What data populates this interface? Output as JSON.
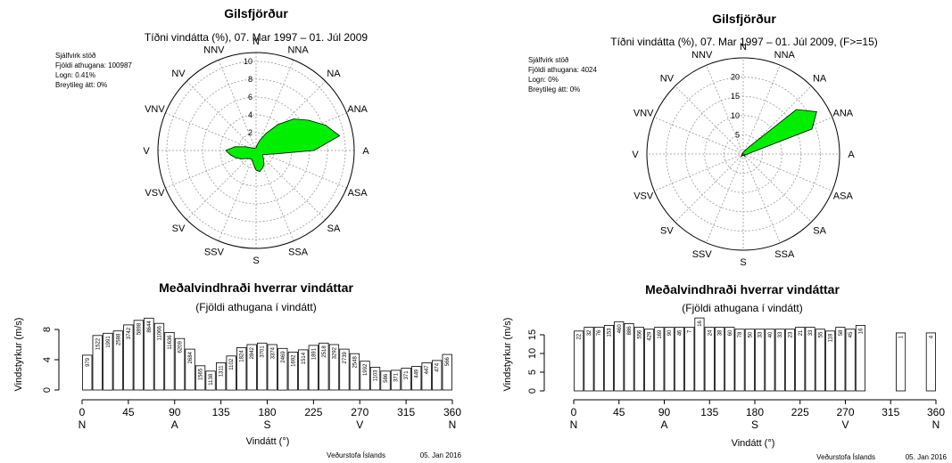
{
  "footer": {
    "institution": "Veðurstofa Íslands",
    "date": "05. Jan 2016"
  },
  "directions": [
    "N",
    "NNA",
    "NA",
    "ANA",
    "A",
    "ASA",
    "SA",
    "SSA",
    "S",
    "SSV",
    "SV",
    "VSV",
    "V",
    "VNV",
    "NV",
    "NNV"
  ],
  "bar_xtick_labels": [
    "0",
    "45",
    "90",
    "135",
    "180",
    "225",
    "270",
    "315",
    "360"
  ],
  "bar_xtick_dirs": [
    "N",
    "",
    "A",
    "",
    "S",
    "",
    "V",
    "",
    "N"
  ],
  "colors": {
    "rose_fill": "#00ee00",
    "rose_outline": "#000000",
    "bar_fill": "#ffffff"
  },
  "panels": [
    {
      "title": "Gilsfjörður",
      "subtitle": "Tíðni vindátta (%), 07. Mar 1997 – 01. Júl 2009",
      "info": [
        "Sjálfvirk stöð",
        "Fjöldi athugana: 100987",
        "Logn: 0.41%",
        "Breytileg átt: 0%"
      ],
      "bar_title": "Meðalvindhraði hverrar vindáttar",
      "bar_subtitle": "(Fjöldi athugana í vindátt)",
      "bar_ylabel": "Vindstyrkur (m/s)",
      "bar_xlabel": "Vindátt (°)"
    },
    {
      "title": "Gilsfjörður",
      "subtitle": "Tíðni vindátta (%), 07. Mar 1997 – 01. Júl 2009, (F>=15)",
      "info": [
        "Sjálfvirk stöð",
        "Fjöldi athugana: 4024",
        "Logn: 0%",
        "Breytileg átt: 0%"
      ],
      "bar_title": "Meðalvindhraði hverrar vindáttar",
      "bar_subtitle": "(Fjöldi athugana í vindátt)",
      "bar_ylabel": "Vindstyrkur (m/s)",
      "bar_xlabel": "Vindátt (°)"
    }
  ],
  "chart_data": [
    {
      "type": "radar",
      "title": "Gilsfjörður",
      "subtitle": "Tíðni vindátta (%), 07. Mar 1997 – 01. Júl 2009",
      "r_ticks": [
        2,
        4,
        6,
        8,
        10
      ],
      "r_max": 11,
      "directions_deg": [
        0,
        10,
        20,
        30,
        40,
        50,
        60,
        70,
        80,
        90,
        100,
        110,
        120,
        130,
        140,
        150,
        160,
        170,
        180,
        190,
        200,
        210,
        220,
        230,
        240,
        250,
        260,
        270,
        280,
        290,
        300,
        310,
        320,
        330,
        340,
        350
      ],
      "frequency_pct": [
        0.3,
        0.6,
        1.2,
        2.2,
        3.8,
        5.5,
        6.8,
        8.3,
        9.5,
        6.5,
        2.2,
        1.3,
        0.9,
        1.0,
        1.3,
        1.8,
        2.1,
        2.4,
        2.2,
        1.6,
        1.2,
        1.1,
        1.2,
        1.4,
        1.9,
        2.4,
        2.9,
        3.4,
        2.4,
        1.2,
        0.6,
        0.4,
        0.3,
        0.3,
        0.3,
        0.3
      ]
    },
    {
      "type": "radar",
      "title": "Gilsfjörður",
      "subtitle": "Tíðni vindátta (%), 07. Mar 1997 – 01. Júl 2009, (F>=15)",
      "r_ticks": [
        5,
        10,
        15,
        20
      ],
      "r_max": 25,
      "directions_deg": [
        0,
        10,
        20,
        30,
        40,
        50,
        60,
        70,
        80,
        90,
        100,
        110,
        120,
        130,
        140,
        150,
        160,
        170,
        180,
        190,
        200,
        210,
        220,
        230,
        240,
        250,
        260,
        270,
        280,
        290,
        300,
        310,
        320,
        330,
        340,
        350
      ],
      "frequency_pct": [
        0.5,
        0.6,
        0.8,
        1.2,
        2.5,
        18.0,
        22.0,
        19.0,
        2.0,
        1.2,
        0.8,
        0.5,
        0.4,
        0.6,
        0.8,
        0.6,
        0.4,
        0.3,
        0.3,
        0.3,
        0.4,
        0.6,
        0.8,
        0.5,
        0.4,
        0.3,
        0.2,
        0.2,
        0.2,
        0.1,
        0,
        0.1,
        0.1,
        0,
        0.2,
        0.3
      ]
    },
    {
      "type": "bar",
      "title": "Meðalvindhraði hverrar vindáttar",
      "subtitle": "(Fjöldi athugana í vindátt)",
      "xlabel": "Vindátt (°)",
      "ylabel": "Vindstyrkur (m/s)",
      "ylim": [
        0,
        10
      ],
      "y_ticks": [
        0,
        4,
        8
      ],
      "xlim": [
        0,
        360
      ],
      "x": [
        0,
        10,
        20,
        30,
        40,
        50,
        60,
        70,
        80,
        90,
        100,
        110,
        120,
        130,
        140,
        150,
        160,
        170,
        180,
        190,
        200,
        210,
        220,
        230,
        240,
        250,
        260,
        270,
        280,
        290,
        300,
        310,
        320,
        330,
        340,
        350
      ],
      "values": [
        4.6,
        7.2,
        7.5,
        7.8,
        8.6,
        9.2,
        9.5,
        8.8,
        7.6,
        6.8,
        5.4,
        3.2,
        2.5,
        3.6,
        4.5,
        5.6,
        6.0,
        6.2,
        6.0,
        5.5,
        5.0,
        5.3,
        5.9,
        6.2,
        6.0,
        5.4,
        4.8,
        3.8,
        3.0,
        2.5,
        2.6,
        2.9,
        3.1,
        3.6,
        3.9,
        4.7
      ],
      "labels": [
        "979",
        "1522",
        "1991",
        "2588",
        "3742",
        "5898",
        "8644",
        "11066",
        "11636",
        "6209",
        "2684",
        "1565",
        "1138",
        "1311",
        "1102",
        "1824",
        "2842",
        "3701",
        "3374",
        "2469",
        "1692",
        "1514",
        "1891",
        "2518",
        "3292",
        "2739",
        "2548",
        "1992",
        "1103",
        "586",
        "371",
        "371",
        "449",
        "447",
        "474",
        "566"
      ]
    },
    {
      "type": "bar",
      "title": "Meðalvindhraði hverrar vindáttar",
      "subtitle": "(Fjöldi athugana í vindátt)",
      "xlabel": "Vindátt (°)",
      "ylabel": "Vindstyrkur (m/s)",
      "ylim": [
        0,
        20
      ],
      "y_ticks": [
        0,
        5,
        10,
        15
      ],
      "xlim": [
        0,
        360
      ],
      "x": [
        0,
        10,
        20,
        30,
        40,
        50,
        60,
        70,
        80,
        90,
        100,
        110,
        120,
        130,
        140,
        150,
        160,
        170,
        180,
        190,
        200,
        210,
        220,
        230,
        240,
        250,
        260,
        270,
        280,
        290,
        300,
        310,
        320,
        330,
        340,
        350
      ],
      "values": [
        16.0,
        17.0,
        17.0,
        17.5,
        18.5,
        18.0,
        17.0,
        16.5,
        17.0,
        17.0,
        17.0,
        17.0,
        19.5,
        17.0,
        17.0,
        17.0,
        16.5,
        16.5,
        16.5,
        16.5,
        16.5,
        16.5,
        17.0,
        17.0,
        16.5,
        16.0,
        17.0,
        16.5,
        17.5,
        null,
        null,
        null,
        15.5,
        null,
        null,
        15.5
      ],
      "labels": [
        "22",
        "32",
        "76",
        "153",
        "460",
        "886",
        "556",
        "429",
        "169",
        "90",
        "46",
        "7",
        "16",
        "24",
        "38",
        "60",
        "78",
        "50",
        "33",
        "40",
        "33",
        "23",
        "21",
        "33",
        "55",
        "118",
        "58",
        "45",
        "16",
        "1",
        "",
        "",
        "1",
        "",
        "1",
        "4"
      ]
    }
  ]
}
